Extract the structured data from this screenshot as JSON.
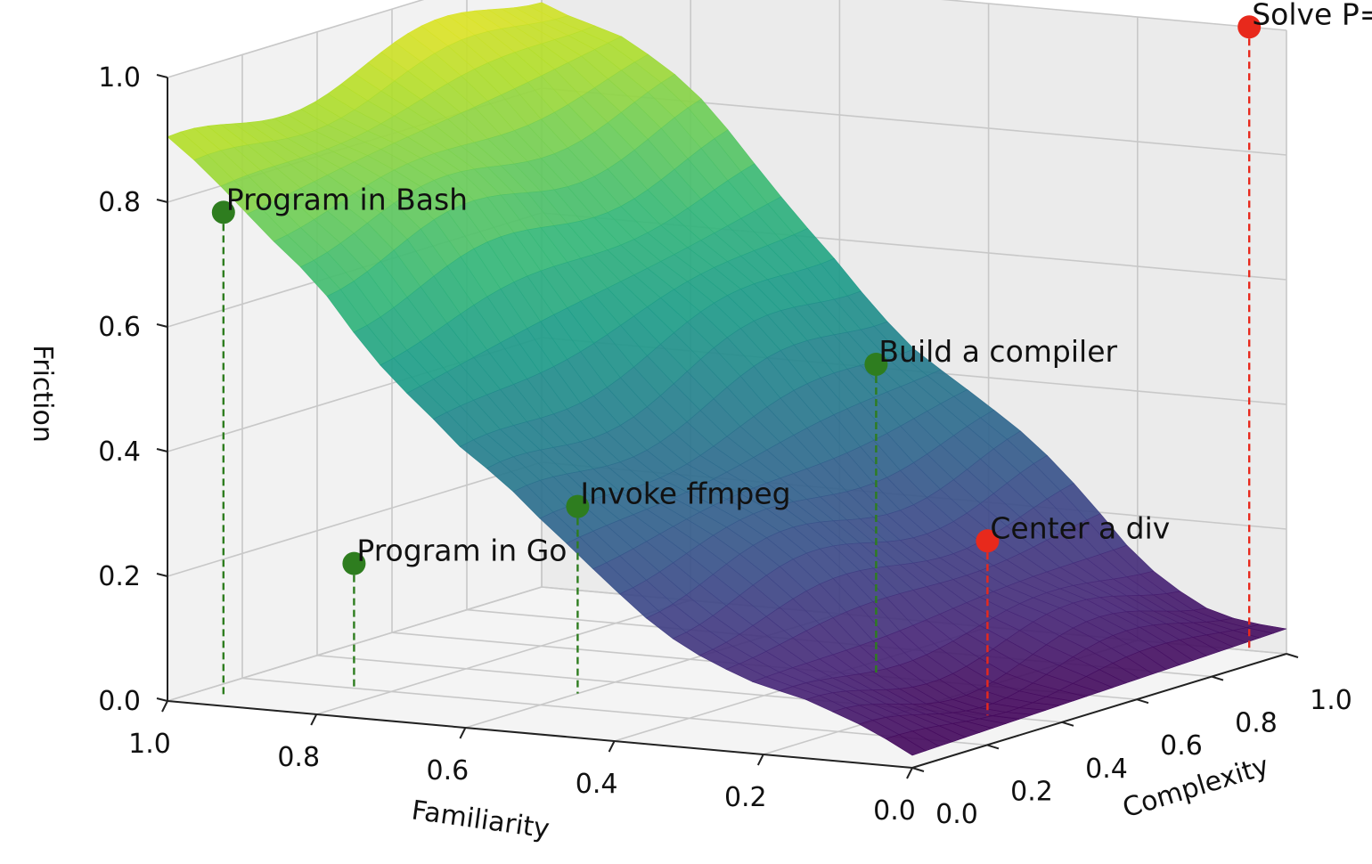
{
  "chart_data": {
    "type": "surface3d",
    "title": "",
    "xlabel": "Familiarity",
    "ylabel": "Complexity",
    "zlabel": "Friction",
    "xlim": [
      0,
      1
    ],
    "ylim": [
      0,
      1
    ],
    "zlim": [
      0,
      1
    ],
    "grid": true,
    "colormap": "viridis",
    "x_ticks": [
      "1.0",
      "0.8",
      "0.6",
      "0.4",
      "0.2",
      "0.0"
    ],
    "y_ticks": [
      "0.0",
      "0.2",
      "0.4",
      "0.6",
      "0.8",
      "1.0"
    ],
    "z_ticks": [
      "0.0",
      "0.2",
      "0.4",
      "0.6",
      "0.8",
      "1.0"
    ],
    "surface_profile": {
      "familiarity": [
        1.0,
        0.9,
        0.8,
        0.7,
        0.6,
        0.5,
        0.4,
        0.3,
        0.2,
        0.1,
        0.0
      ],
      "friction_at_low_complexity": [
        0.88,
        0.8,
        0.72,
        0.56,
        0.42,
        0.33,
        0.26,
        0.18,
        0.1,
        0.05,
        0.02
      ],
      "friction_at_high_complexity": [
        0.96,
        0.9,
        0.8,
        0.68,
        0.58,
        0.45,
        0.34,
        0.24,
        0.14,
        0.08,
        0.04
      ]
    },
    "points": [
      {
        "label": "Solve P=NP",
        "familiarity": 0.05,
        "complexity": 1.0,
        "friction": 1.0,
        "color": "#e8291c"
      },
      {
        "label": "Program in Bash",
        "familiarity": 0.95,
        "complexity": 0.05,
        "friction": 0.78,
        "color": "#2e7d1f"
      },
      {
        "label": "Build a compiler",
        "familiarity": 0.35,
        "complexity": 0.6,
        "friction": 0.5,
        "color": "#2e7d1f"
      },
      {
        "label": "Invoke ffmpeg",
        "familiarity": 0.6,
        "complexity": 0.3,
        "friction": 0.3,
        "color": "#2e7d1f"
      },
      {
        "label": "Program in Go",
        "familiarity": 0.85,
        "complexity": 0.2,
        "friction": 0.2,
        "color": "#2e7d1f"
      },
      {
        "label": "Center a div",
        "familiarity": 0.1,
        "complexity": 0.4,
        "friction": 0.28,
        "color": "#e8291c"
      }
    ]
  }
}
